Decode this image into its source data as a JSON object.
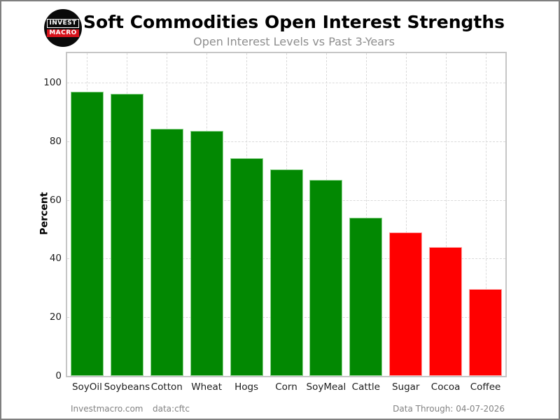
{
  "header": {
    "title": "Soft Commodities Open Interest Strengths",
    "subtitle": "Open Interest Levels vs Past 3-Years",
    "logo_line1": "INVEST",
    "logo_line2": "MACRO"
  },
  "chart_data": {
    "type": "bar",
    "title": "Soft Commodities Open Interest Strengths",
    "subtitle": "Open Interest Levels vs Past 3-Years",
    "xlabel": "",
    "ylabel": "Percent",
    "categories": [
      "SoyOil",
      "Soybeans",
      "Cotton",
      "Wheat",
      "Hogs",
      "Corn",
      "SoyMeal",
      "Cattle",
      "Sugar",
      "Cocoa",
      "Coffee"
    ],
    "values": [
      96.9,
      96.1,
      84.3,
      83.5,
      74.1,
      70.4,
      66.9,
      53.9,
      48.9,
      43.8,
      29.5
    ],
    "bar_colors": [
      "green",
      "green",
      "green",
      "green",
      "green",
      "green",
      "green",
      "green",
      "red",
      "red",
      "red"
    ],
    "colors": {
      "green": "#028802",
      "green_edge": "#8fd48f",
      "red": "#ff0000",
      "red_edge": "#ff9f9f",
      "grid": "#dadada",
      "plot_border": "#c6c6c6"
    },
    "ylim": [
      0,
      110
    ],
    "yticks": [
      0,
      20,
      40,
      60,
      80,
      100
    ],
    "grid": "dashed",
    "legend": "none"
  },
  "footer": {
    "site": "Investmacro.com",
    "source": "data:cftc",
    "data_through": "Data Through: 04-07-2026"
  }
}
